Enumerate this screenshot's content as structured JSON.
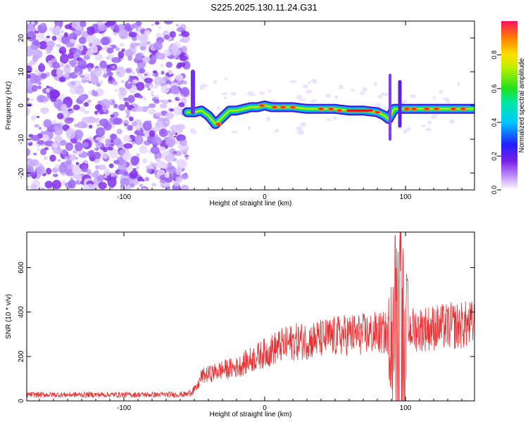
{
  "title": "S225.2025.130.11.24.G31",
  "colors": {
    "scatter": "#8a2be2",
    "snr_line": "#e83232",
    "axis": "#000000"
  },
  "chart_data": [
    {
      "type": "heatmap",
      "xlabel": "Height of straight line (km)",
      "ylabel": "Frequency (Hz)",
      "xlim": [
        -169,
        149
      ],
      "ylim": [
        -25,
        25
      ],
      "xticks": [
        -100,
        0,
        100
      ],
      "yticks": [
        -20,
        -10,
        0,
        10,
        20
      ],
      "grid": false,
      "colorbar": {
        "label": "Normalized spectral amplitude",
        "range": [
          0,
          1
        ],
        "ticks": [
          "0.0",
          "0.2",
          "0.4",
          "0.6",
          "0.8"
        ]
      },
      "noise_region": {
        "x": [
          -169,
          -55
        ],
        "y": [
          -25,
          25
        ]
      },
      "signal_ridge": {
        "x": [
          -55,
          -50,
          -45,
          -40,
          -35,
          -30,
          -25,
          -20,
          -15,
          -10,
          -5,
          0,
          5,
          10,
          20,
          30,
          40,
          50,
          60,
          70,
          80,
          85,
          88,
          92,
          95,
          100,
          110,
          120,
          130,
          140,
          148
        ],
        "y": [
          -2,
          -2,
          -1.5,
          -3,
          -5.5,
          -3.5,
          -1.5,
          -1.5,
          -1,
          -0.5,
          -0.5,
          0,
          -0.5,
          -0.5,
          -0.5,
          -1,
          -1,
          -1,
          -1.5,
          -1.5,
          -2,
          -3,
          -4,
          -1,
          -1,
          -1,
          -1,
          -1,
          -1,
          -1,
          -1
        ]
      }
    },
    {
      "type": "line",
      "xlabel": "Height of straight line (km)",
      "ylabel": "SNR (10 * v/v)",
      "xlim": [
        -169,
        149
      ],
      "ylim": [
        0,
        760
      ],
      "xticks": [
        -100,
        0,
        100
      ],
      "yticks": [
        0,
        200,
        400,
        600
      ],
      "grid": false,
      "series": [
        {
          "x": [
            -169,
            -150,
            -130,
            -110,
            -90,
            -70,
            -55,
            -48,
            -45,
            -40,
            -30,
            -20,
            -10,
            0,
            10,
            20,
            30,
            40,
            50,
            60,
            70,
            80,
            86,
            90,
            95,
            100,
            110,
            120,
            130,
            140,
            149
          ],
          "values": [
            28,
            28,
            28,
            28,
            28,
            28,
            30,
            60,
            110,
            120,
            140,
            150,
            185,
            215,
            245,
            265,
            272,
            280,
            290,
            300,
            300,
            305,
            305,
            300,
            310,
            320,
            325,
            330,
            335,
            340,
            345
          ]
        }
      ]
    }
  ]
}
